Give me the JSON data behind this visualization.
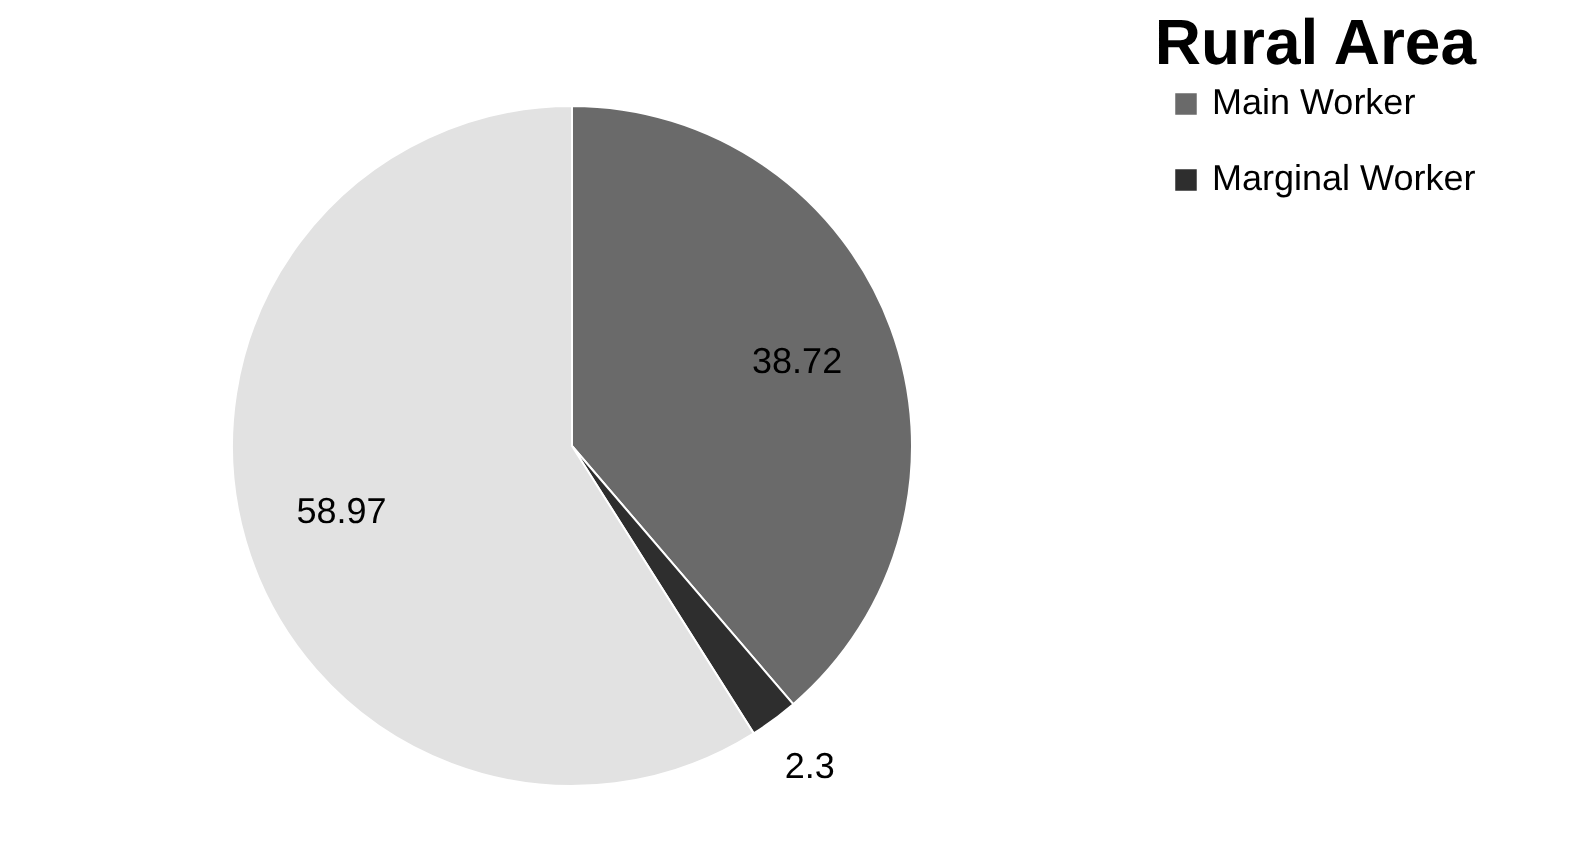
{
  "chart_data": {
    "type": "pie",
    "title": "Rural Area",
    "categories": [
      "Main Worker",
      "Marginal Worker",
      null
    ],
    "values": [
      38.72,
      2.3,
      58.97
    ],
    "colors": [
      "#6a6a6a",
      "#2e2e2e",
      "#e2e2e2"
    ],
    "data_labels": true,
    "legend": "right"
  }
}
